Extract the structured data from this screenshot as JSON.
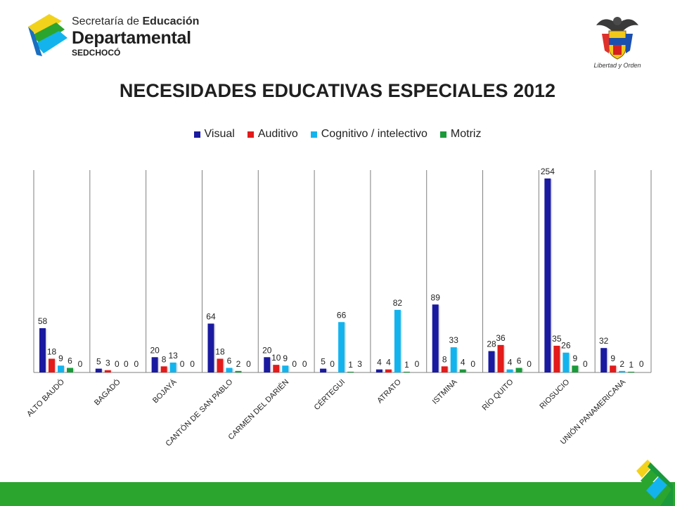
{
  "header": {
    "logo_line1_a": "Secretaría de ",
    "logo_line1_b": "Educación",
    "logo_line2": "Departamental",
    "logo_line3": "SEDCHOCÓ",
    "seal_motto": "Libertad y Orden"
  },
  "colors": {
    "visual": "#1a1aa0",
    "auditivo": "#e31b1b",
    "cognitivo": "#13b4ee",
    "motriz": "#1a9a3a",
    "footer": "#2ba52e"
  },
  "chart_data": {
    "type": "bar",
    "title": "NECESIDADES EDUCATIVAS ESPECIALES 2012",
    "legend_position": "top",
    "grid": false,
    "ylim": [
      0,
      265
    ],
    "categories": [
      "ALTO BAUDÓ",
      "BAGADÓ",
      "BOJAYÁ",
      "CANTÓN DE SAN PABLO",
      "CARMEN DEL DARIÉN",
      "CÉRTEGUI",
      "ATRATO",
      "ISTMINA",
      "RÍO QUITO",
      "RIOSUCIO",
      "UNIÓN PANAMERICANA"
    ],
    "series": [
      {
        "name": "Visual",
        "color": "#1a1aa0",
        "values": [
          58,
          5,
          20,
          64,
          20,
          5,
          4,
          89,
          28,
          254,
          32
        ]
      },
      {
        "name": "Auditivo",
        "color": "#e31b1b",
        "values": [
          18,
          3,
          8,
          18,
          10,
          0,
          4,
          8,
          36,
          35,
          9
        ]
      },
      {
        "name": "Cognitivo / intelectivo",
        "color": "#13b4ee",
        "values": [
          9,
          0,
          13,
          6,
          9,
          66,
          82,
          33,
          4,
          26,
          2
        ]
      },
      {
        "name": "Motriz",
        "color": "#1a9a3a",
        "values": [
          6,
          0,
          0,
          2,
          0,
          1,
          1,
          4,
          6,
          9,
          1
        ]
      },
      {
        "name": "",
        "color": "#ffffff",
        "values": [
          0,
          0,
          0,
          0,
          0,
          3,
          0,
          0,
          0,
          0,
          0
        ]
      }
    ],
    "extra_labels": [
      {
        "category": "ALTO BAUDÓ",
        "text": "0"
      },
      {
        "category": "BAGADÓ",
        "text": "0"
      },
      {
        "category": "BOJAYÁ",
        "text": "0"
      },
      {
        "category": "CANTÓN DE SAN PABLO",
        "text": "0"
      },
      {
        "category": "CARMEN DEL DARIÉN",
        "text": "0"
      },
      {
        "category": "ATRATO",
        "text": "0"
      },
      {
        "category": "ISTMINA",
        "text": "0"
      },
      {
        "category": "RÍO QUITO",
        "text": "0"
      },
      {
        "category": "RIOSUCIO",
        "text": "0"
      },
      {
        "category": "UNIÓN PANAMERICANA",
        "text": "0"
      }
    ]
  }
}
